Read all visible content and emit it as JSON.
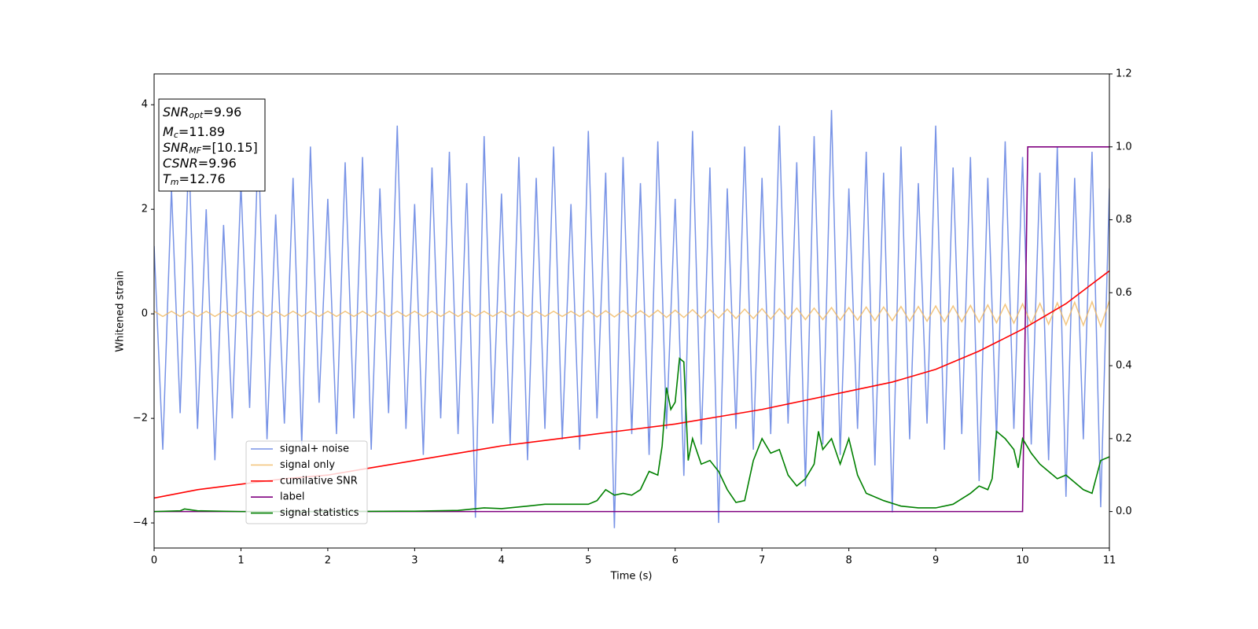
{
  "chart_data": {
    "type": "line",
    "xlabel": "Time (s)",
    "ylabel": "Whitened strain",
    "xlim": [
      0,
      11
    ],
    "xticks": [
      0,
      1,
      2,
      3,
      4,
      5,
      6,
      7,
      8,
      9,
      10,
      11
    ],
    "ylim": [
      -4.48,
      4.59
    ],
    "yticks": [
      {
        "value": -4,
        "label": "−4"
      },
      {
        "value": -2,
        "label": "−2"
      },
      0,
      2,
      4
    ],
    "y2lim": [
      -0.1,
      1.2
    ],
    "y2ticks": [
      {
        "value": 0,
        "label": "0.0"
      },
      {
        "value": 0.2,
        "label": "0.2"
      },
      {
        "value": 0.4,
        "label": "0.4"
      },
      {
        "value": 0.6,
        "label": "0.6"
      },
      {
        "value": 0.8,
        "label": "0.8"
      },
      {
        "value": 1,
        "label": "1.0"
      },
      {
        "value": 1.2,
        "label": "1.2"
      }
    ],
    "legend": "lower left",
    "annotation": [
      {
        "base": "SNR",
        "sub": "opt",
        "text": "=9.96"
      },
      {
        "base": "M",
        "sub": "c",
        "text": "=11.89"
      },
      {
        "base": "SNR",
        "sub": "MF",
        "text": "=[10.15]"
      },
      {
        "base": "CSNR",
        "text": "=9.96"
      },
      {
        "base": "T",
        "sub": "m",
        "text": "=12.76"
      }
    ],
    "series": [
      {
        "name": "signal+ noise",
        "color": "#7893e6",
        "x": [
          0,
          0.1,
          0.2,
          0.3,
          0.4,
          0.5,
          0.6,
          0.7,
          0.8,
          0.9,
          1,
          1.1,
          1.2,
          1.3,
          1.4,
          1.5,
          1.6,
          1.7,
          1.8,
          1.9,
          2,
          2.1,
          2.2,
          2.3,
          2.4,
          2.5,
          2.6,
          2.7,
          2.8,
          2.9,
          3,
          3.1,
          3.2,
          3.3,
          3.4,
          3.5,
          3.6,
          3.7,
          3.8,
          3.9,
          4,
          4.1,
          4.2,
          4.3,
          4.4,
          4.5,
          4.6,
          4.7,
          4.8,
          4.9,
          5,
          5.1,
          5.2,
          5.3,
          5.4,
          5.5,
          5.6,
          5.7,
          5.8,
          5.9,
          6,
          6.1,
          6.2,
          6.3,
          6.4,
          6.5,
          6.6,
          6.7,
          6.8,
          6.9,
          7,
          7.1,
          7.2,
          7.3,
          7.4,
          7.5,
          7.6,
          7.7,
          7.8,
          7.9,
          8,
          8.1,
          8.2,
          8.3,
          8.4,
          8.5,
          8.6,
          8.7,
          8.8,
          8.9,
          9,
          9.1,
          9.2,
          9.3,
          9.4,
          9.5,
          9.6,
          9.7,
          9.8,
          9.9,
          10,
          10.1,
          10.2,
          10.3,
          10.4,
          10.5,
          10.6,
          10.7,
          10.8,
          10.9,
          11
        ],
        "values": [
          1.3,
          -2.6,
          2.4,
          -1.9,
          3.1,
          -2.2,
          2.0,
          -2.8,
          1.7,
          -2.0,
          2.5,
          -1.8,
          3.3,
          -2.4,
          1.9,
          -2.1,
          2.6,
          -2.5,
          3.2,
          -1.7,
          2.2,
          -2.3,
          2.9,
          -2.0,
          3.0,
          -2.6,
          2.4,
          -1.9,
          3.6,
          -2.2,
          2.1,
          -2.7,
          2.8,
          -2.0,
          3.1,
          -2.3,
          2.5,
          -3.9,
          3.4,
          -2.1,
          2.3,
          -2.5,
          3.0,
          -2.8,
          2.6,
          -2.2,
          3.2,
          -2.4,
          2.1,
          -2.6,
          3.5,
          -2.0,
          2.7,
          -4.1,
          3.0,
          -2.3,
          2.5,
          -2.7,
          3.3,
          -2.2,
          2.2,
          -3.1,
          3.5,
          -2.5,
          2.8,
          -4.0,
          2.4,
          -2.2,
          3.2,
          -2.6,
          2.6,
          -2.3,
          3.6,
          -2.1,
          2.9,
          -3.3,
          3.4,
          -2.5,
          3.9,
          -2.7,
          2.4,
          -2.2,
          3.1,
          -2.9,
          2.7,
          -3.8,
          3.2,
          -2.4,
          2.5,
          -2.1,
          3.6,
          -2.6,
          2.8,
          -2.3,
          3.0,
          -3.2,
          2.6,
          -2.4,
          3.3,
          -2.2,
          3.0,
          -2.5,
          2.7,
          -2.8,
          3.2,
          -3.5,
          2.6,
          -2.4,
          3.1,
          -3.7,
          2.4
        ]
      },
      {
        "name": "signal only",
        "color": "#f0b860",
        "x": [
          0,
          0.1,
          0.2,
          0.3,
          0.4,
          0.5,
          0.6,
          0.7,
          0.8,
          0.9,
          1,
          1.1,
          1.2,
          1.3,
          1.4,
          1.5,
          1.6,
          1.7,
          1.8,
          1.9,
          2,
          2.1,
          2.2,
          2.3,
          2.4,
          2.5,
          2.6,
          2.7,
          2.8,
          2.9,
          3,
          3.1,
          3.2,
          3.3,
          3.4,
          3.5,
          3.6,
          3.7,
          3.8,
          3.9,
          4,
          4.1,
          4.2,
          4.3,
          4.4,
          4.5,
          4.6,
          4.7,
          4.8,
          4.9,
          5,
          5.1,
          5.2,
          5.3,
          5.4,
          5.5,
          5.6,
          5.7,
          5.8,
          5.9,
          6,
          6.1,
          6.2,
          6.3,
          6.4,
          6.5,
          6.6,
          6.7,
          6.8,
          6.9,
          7,
          7.1,
          7.2,
          7.3,
          7.4,
          7.5,
          7.6,
          7.7,
          7.8,
          7.9,
          8,
          8.1,
          8.2,
          8.3,
          8.4,
          8.5,
          8.6,
          8.7,
          8.8,
          8.9,
          9,
          9.1,
          9.2,
          9.3,
          9.4,
          9.5,
          9.6,
          9.7,
          9.8,
          9.9,
          10,
          10.1,
          10.2,
          10.3,
          10.4,
          10.5,
          10.6,
          10.7,
          10.8,
          10.9,
          11
        ],
        "values": [
          0.05,
          -0.05,
          0.05,
          -0.05,
          0.05,
          -0.05,
          0.05,
          -0.05,
          0.05,
          -0.05,
          0.05,
          -0.05,
          0.05,
          -0.05,
          0.05,
          -0.05,
          0.05,
          -0.05,
          0.05,
          -0.05,
          0.05,
          -0.05,
          0.05,
          -0.05,
          0.05,
          -0.05,
          0.05,
          -0.05,
          0.05,
          -0.05,
          0.05,
          -0.05,
          0.05,
          -0.05,
          0.05,
          -0.05,
          0.05,
          -0.05,
          0.05,
          -0.05,
          0.05,
          -0.05,
          0.05,
          -0.05,
          0.05,
          -0.05,
          0.05,
          -0.05,
          0.05,
          -0.05,
          0.06,
          -0.06,
          0.06,
          -0.06,
          0.06,
          -0.06,
          0.06,
          -0.06,
          0.07,
          -0.07,
          0.07,
          -0.07,
          0.08,
          -0.08,
          0.08,
          -0.08,
          0.09,
          -0.09,
          0.09,
          -0.09,
          0.1,
          -0.1,
          0.1,
          -0.1,
          0.11,
          -0.11,
          0.11,
          -0.11,
          0.12,
          -0.12,
          0.12,
          -0.12,
          0.13,
          -0.13,
          0.13,
          -0.13,
          0.14,
          -0.14,
          0.14,
          -0.14,
          0.15,
          -0.15,
          0.15,
          -0.15,
          0.16,
          -0.16,
          0.17,
          -0.17,
          0.18,
          -0.18,
          0.19,
          -0.19,
          0.2,
          -0.2,
          0.21,
          -0.21,
          0.22,
          -0.22,
          0.23,
          -0.24,
          0.25
        ]
      },
      {
        "name": "cumilative SNR",
        "color": "#ff0000",
        "axis": "y2",
        "x": [
          0,
          0.5,
          1,
          1.5,
          2,
          2.5,
          3,
          3.5,
          4,
          4.5,
          5,
          5.5,
          6,
          6.5,
          7,
          7.5,
          8,
          8.5,
          9,
          9.5,
          10,
          10.5,
          11
        ],
        "values": [
          0.037,
          0.06,
          0.075,
          0.09,
          0.1,
          0.12,
          0.14,
          0.16,
          0.18,
          0.195,
          0.21,
          0.225,
          0.24,
          0.26,
          0.28,
          0.305,
          0.33,
          0.355,
          0.39,
          0.44,
          0.5,
          0.57,
          0.66
        ]
      },
      {
        "name": "label",
        "color": "#800080",
        "axis": "y2",
        "x": [
          0,
          10,
          10.06,
          11
        ],
        "values": [
          0,
          0,
          1,
          1
        ]
      },
      {
        "name": "signal statistics",
        "color": "#008000",
        "axis": "y2",
        "x": [
          0,
          0.3,
          0.35,
          0.5,
          1,
          2,
          3,
          3.5,
          3.8,
          4,
          4.3,
          4.5,
          4.8,
          5,
          5.1,
          5.2,
          5.3,
          5.4,
          5.5,
          5.6,
          5.7,
          5.8,
          5.85,
          5.9,
          5.95,
          6.0,
          6.05,
          6.1,
          6.15,
          6.2,
          6.3,
          6.4,
          6.5,
          6.6,
          6.7,
          6.8,
          6.9,
          7.0,
          7.1,
          7.2,
          7.3,
          7.4,
          7.5,
          7.6,
          7.65,
          7.7,
          7.8,
          7.9,
          8.0,
          8.1,
          8.2,
          8.4,
          8.6,
          8.8,
          9.0,
          9.2,
          9.4,
          9.5,
          9.6,
          9.65,
          9.7,
          9.8,
          9.9,
          9.95,
          10.0,
          10.1,
          10.2,
          10.3,
          10.4,
          10.5,
          10.6,
          10.7,
          10.8,
          10.9,
          11
        ],
        "values": [
          0,
          0.002,
          0.007,
          0.002,
          0,
          0,
          0.001,
          0.003,
          0.01,
          0.008,
          0.015,
          0.02,
          0.02,
          0.02,
          0.03,
          0.06,
          0.045,
          0.05,
          0.045,
          0.06,
          0.11,
          0.1,
          0.18,
          0.34,
          0.28,
          0.3,
          0.42,
          0.41,
          0.14,
          0.2,
          0.13,
          0.14,
          0.11,
          0.06,
          0.025,
          0.03,
          0.14,
          0.2,
          0.16,
          0.17,
          0.1,
          0.07,
          0.09,
          0.13,
          0.22,
          0.17,
          0.2,
          0.13,
          0.2,
          0.1,
          0.05,
          0.03,
          0.015,
          0.01,
          0.01,
          0.02,
          0.05,
          0.07,
          0.06,
          0.09,
          0.22,
          0.2,
          0.17,
          0.12,
          0.2,
          0.16,
          0.13,
          0.11,
          0.09,
          0.1,
          0.08,
          0.06,
          0.05,
          0.14,
          0.15
        ]
      }
    ]
  }
}
